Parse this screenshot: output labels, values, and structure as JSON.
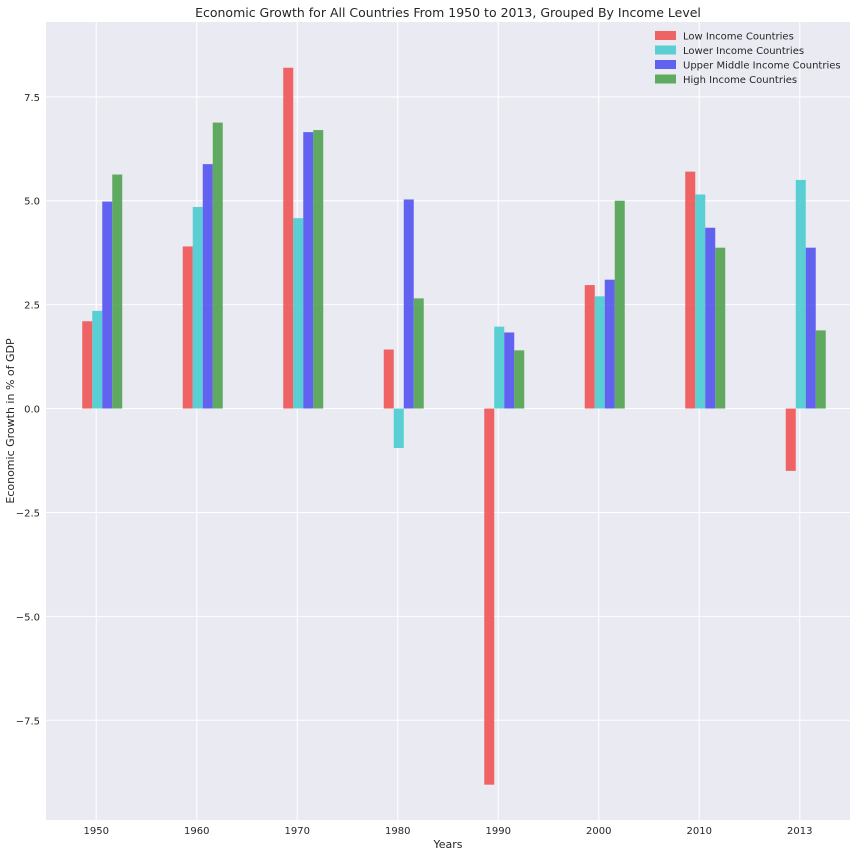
{
  "chart_data": {
    "type": "bar",
    "title": "Economic Growth for All Countries From 1950 to 2013, Grouped By Income Level",
    "xlabel": "Years",
    "ylabel": "Economic Growth in % of GDP",
    "categories": [
      "1950",
      "1960",
      "1970",
      "1980",
      "1990",
      "2000",
      "2010",
      "2013"
    ],
    "ylim": [
      -9.9,
      9.3
    ],
    "yticks": [
      -7.5,
      -5.0,
      -2.5,
      0.0,
      2.5,
      5.0,
      7.5
    ],
    "ytick_labels": [
      "−7.5",
      "−5.0",
      "−2.5",
      "0.0",
      "2.5",
      "5.0",
      "7.5"
    ],
    "grid": true,
    "legend_position": "top-right",
    "series": [
      {
        "name": "Low Income Countries",
        "color": "#f05050",
        "values": [
          2.1,
          3.9,
          8.2,
          1.42,
          -9.05,
          2.97,
          5.7,
          -1.5
        ]
      },
      {
        "name": "Lower Income Countries",
        "color": "#44cbcf",
        "values": [
          2.35,
          4.85,
          4.58,
          -0.95,
          1.97,
          2.7,
          5.15,
          5.5
        ]
      },
      {
        "name": "Upper Middle Income Countries",
        "color": "#4f4ff0",
        "values": [
          4.98,
          5.88,
          6.65,
          5.03,
          1.83,
          3.1,
          4.35,
          3.87
        ]
      },
      {
        "name": "High Income Countries",
        "color": "#4c9f4c",
        "values": [
          5.63,
          6.88,
          6.7,
          2.65,
          1.4,
          5.0,
          3.87,
          1.88
        ]
      }
    ]
  }
}
